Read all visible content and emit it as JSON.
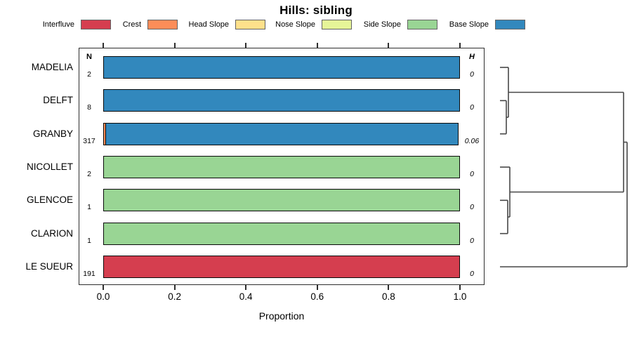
{
  "title": "Hills: sibling",
  "legend": {
    "items": [
      {
        "label": "Interfluve",
        "color": "#D53E4F"
      },
      {
        "label": "Crest",
        "color": "#FC8D59"
      },
      {
        "label": "Head Slope",
        "color": "#FEE08B"
      },
      {
        "label": "Nose Slope",
        "color": "#E6F598"
      },
      {
        "label": "Side Slope",
        "color": "#99D594"
      },
      {
        "label": "Base Slope",
        "color": "#3288BD"
      }
    ]
  },
  "chart_data": {
    "type": "bar",
    "orientation": "horizontal-stacked",
    "title": "Hills: sibling",
    "xlabel": "Proportion",
    "xlim": [
      0,
      1
    ],
    "xticks": [
      "0.0",
      "0.2",
      "0.4",
      "0.6",
      "0.8",
      "1.0"
    ],
    "grid": false,
    "legend_position": "top",
    "col_headers": {
      "n": "N",
      "h": "H"
    },
    "class_colors": {
      "Interfluve": "#D53E4F",
      "Crest": "#FC8D59",
      "Head Slope": "#FEE08B",
      "Nose Slope": "#E6F598",
      "Side Slope": "#99D594",
      "Base Slope": "#3288BD"
    },
    "rows": [
      {
        "name": "MADELIA",
        "n": "2",
        "h": "0",
        "segments": [
          {
            "class": "Base Slope",
            "value": 1.0
          }
        ]
      },
      {
        "name": "DELFT",
        "n": "8",
        "h": "0",
        "segments": [
          {
            "class": "Base Slope",
            "value": 1.0
          }
        ]
      },
      {
        "name": "GRANBY",
        "n": "317",
        "h": "0.06",
        "segments": [
          {
            "class": "Crest",
            "value": 0.01
          },
          {
            "class": "Base Slope",
            "value": 0.99
          }
        ]
      },
      {
        "name": "NICOLLET",
        "n": "2",
        "h": "0",
        "segments": [
          {
            "class": "Side Slope",
            "value": 1.0
          }
        ]
      },
      {
        "name": "GLENCOE",
        "n": "1",
        "h": "0",
        "segments": [
          {
            "class": "Side Slope",
            "value": 1.0
          }
        ]
      },
      {
        "name": "CLARION",
        "n": "1",
        "h": "0",
        "segments": [
          {
            "class": "Side Slope",
            "value": 1.0
          }
        ]
      },
      {
        "name": "LE SUEUR",
        "n": "191",
        "h": "0",
        "segments": [
          {
            "class": "Interfluve",
            "value": 1.0
          }
        ]
      }
    ]
  },
  "dendrogram": {
    "leaf_order": [
      "MADELIA",
      "DELFT",
      "GRANBY",
      "NICOLLET",
      "GLENCOE",
      "CLARION",
      "LE SUEUR"
    ],
    "tree": {
      "x": 893,
      "children": [
        {
          "x": 888,
          "children": [
            {
              "x": 724,
              "children": [
                {
                  "leaf": "MADELIA"
                },
                {
                  "x": 721,
                  "children": [
                    {
                      "leaf": "DELFT"
                    },
                    {
                      "leaf": "GRANBY"
                    }
                  ]
                }
              ]
            },
            {
              "x": 726,
              "children": [
                {
                  "leaf": "NICOLLET"
                },
                {
                  "x": 723,
                  "children": [
                    {
                      "leaf": "GLENCOE"
                    },
                    {
                      "leaf": "CLARION"
                    }
                  ]
                }
              ]
            }
          ]
        },
        {
          "leaf": "LE SUEUR"
        }
      ]
    }
  }
}
